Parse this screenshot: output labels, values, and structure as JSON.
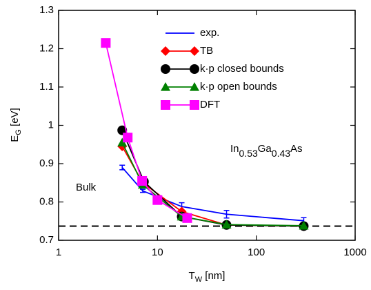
{
  "chart_data": {
    "type": "line",
    "xlabel": [
      "T",
      "W",
      " [nm]"
    ],
    "ylabel": [
      "E",
      "G",
      " [eV]"
    ],
    "annotations": {
      "material": [
        "In",
        "0.53",
        "Ga",
        "0.43",
        "As"
      ],
      "bulk": "Bulk"
    },
    "xlog": true,
    "xlim": [
      1,
      1000
    ],
    "xticks": [
      1,
      10,
      100,
      1000
    ],
    "ylim": [
      0.7,
      1.3
    ],
    "yticks": [
      0.7,
      0.8,
      0.9,
      1,
      1.1,
      1.2,
      1.3
    ],
    "hline": 0.737,
    "legend": "upper right",
    "series": [
      {
        "name": "exp.",
        "color": "#0000ff",
        "marker": "none",
        "x": [
          4.4,
          7.1,
          17.6,
          50,
          302
        ],
        "values": [
          0.89,
          0.829,
          0.788,
          0.768,
          0.751
        ],
        "errors": [
          0.006,
          0.004,
          0.01,
          0.01,
          0.008
        ]
      },
      {
        "name": "TB",
        "color": "#ff0000",
        "marker": "diamond",
        "x": [
          4.4,
          7.1,
          17.6,
          50,
          302
        ],
        "values": [
          0.945,
          0.85,
          0.775,
          0.74,
          0.737
        ]
      },
      {
        "name": "k·p closed bounds",
        "color": "#000000",
        "marker": "circle",
        "x": [
          4.4,
          7.3,
          17.6,
          50,
          302
        ],
        "values": [
          0.987,
          0.853,
          0.762,
          0.74,
          0.737
        ]
      },
      {
        "name": "k·p open bounds",
        "color": "#008000",
        "marker": "triangle",
        "x": [
          4.4,
          7.1,
          17.6,
          50,
          302
        ],
        "values": [
          0.955,
          0.845,
          0.762,
          0.741,
          0.738
        ]
      },
      {
        "name": "DFT",
        "color": "#ff00ff",
        "marker": "square",
        "x": [
          3,
          5,
          7,
          10,
          20
        ],
        "values": [
          1.215,
          0.968,
          0.855,
          0.805,
          0.758
        ]
      }
    ]
  }
}
